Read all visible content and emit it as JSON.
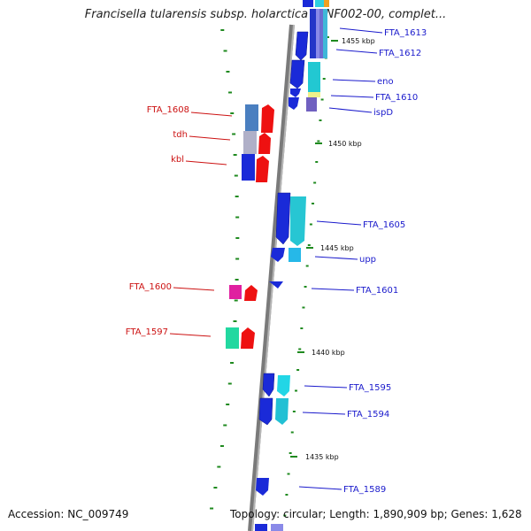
{
  "title": "Francisella tularensis subsp. holarctica FTNF002-00, complet...",
  "footer": {
    "accession": "Accession: NC_009749",
    "summary": "Topology: circular; Length: 1,890,909 bp; Genes: 1,628"
  },
  "scale_labels": [
    "1455 kbp",
    "1450 kbp",
    "1445 kbp",
    "1440 kbp",
    "1435 kbp"
  ],
  "colors": {
    "forward_label": "#1a1acc",
    "reverse_label": "#cc1111",
    "backbone": "#888888",
    "tick": "#1f8a1f"
  },
  "forward_genes": [
    "FTA_1613",
    "FTA_1612",
    "eno",
    "FTA_1610",
    "ispD",
    "FTA_1605",
    "upp",
    "FTA_1601",
    "FTA_1595",
    "FTA_1594",
    "FTA_1589"
  ],
  "reverse_genes": [
    "FTA_1608",
    "tdh",
    "kbl",
    "FTA_1600",
    "FTA_1597"
  ]
}
